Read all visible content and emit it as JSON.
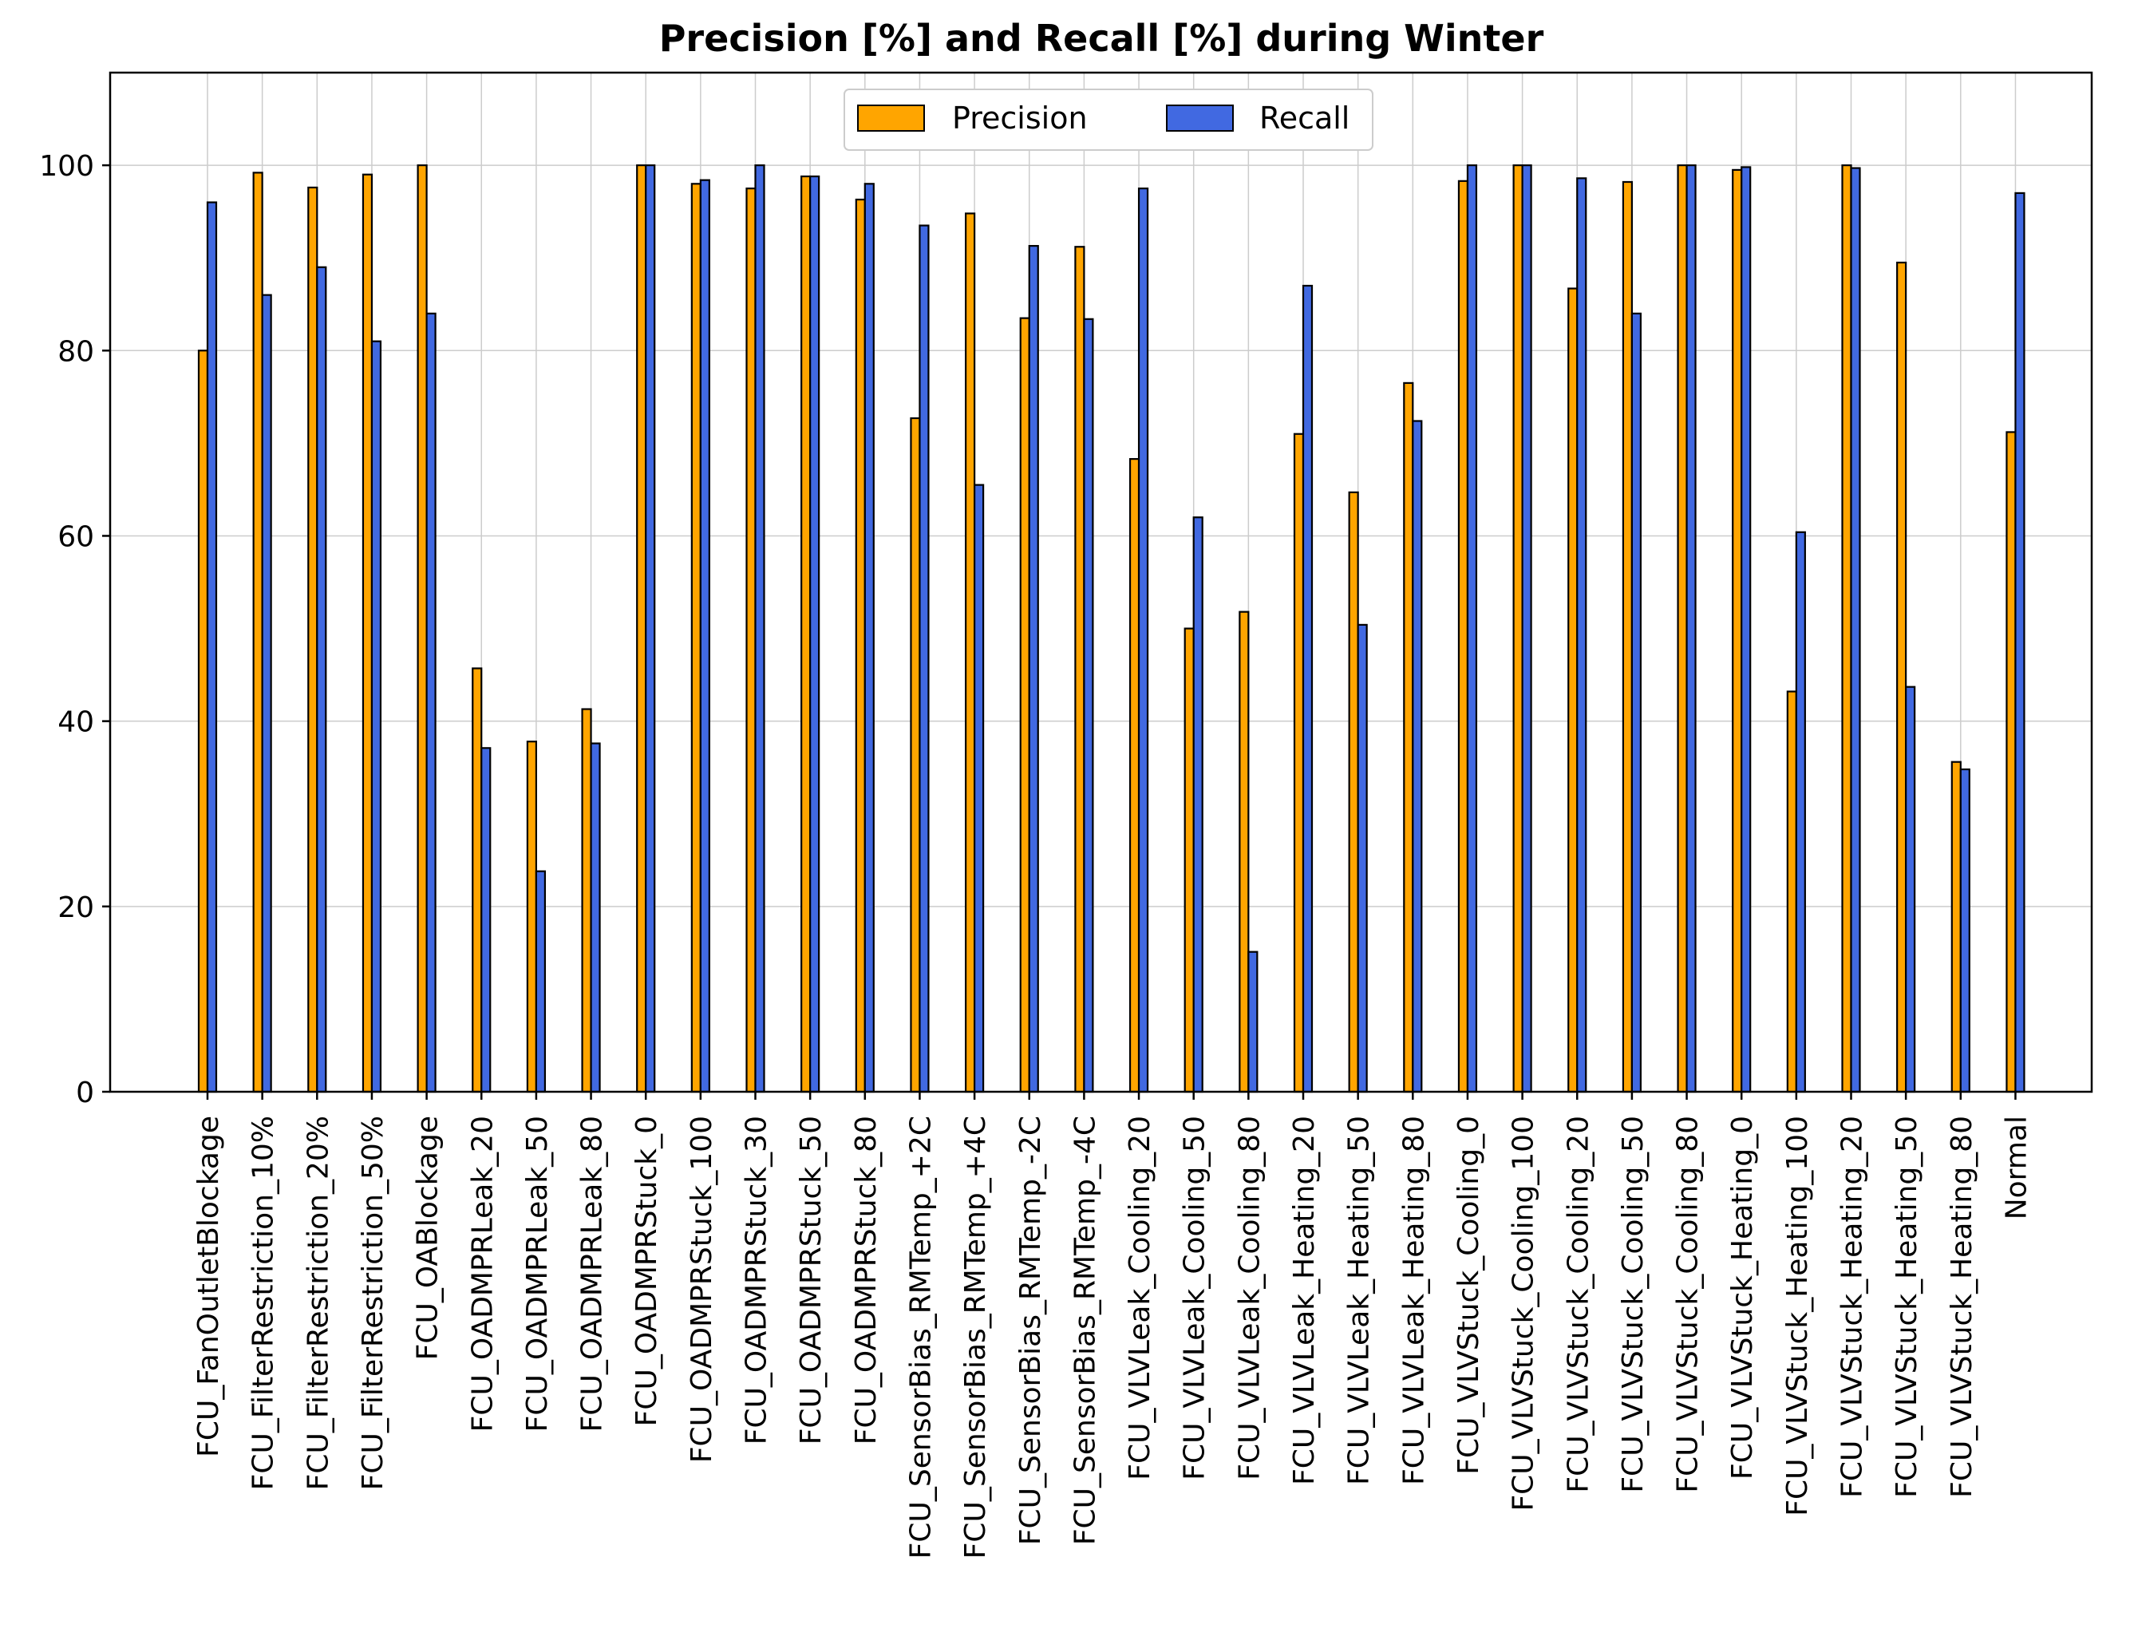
{
  "chart_data": {
    "type": "bar",
    "title": "Precision [%] and Recall [%] during Winter",
    "xlabel": "",
    "ylabel": "",
    "ylim": [
      0,
      110
    ],
    "yticks": [
      0,
      20,
      40,
      60,
      80,
      100
    ],
    "grid": true,
    "legend_position": "top-center",
    "categories": [
      "FCU_FanOutletBlockage",
      "FCU_FilterRestriction_10%",
      "FCU_FilterRestriction_20%",
      "FCU_FilterRestriction_50%",
      "FCU_OABlockage",
      "FCU_OADMPRLeak_20",
      "FCU_OADMPRLeak_50",
      "FCU_OADMPRLeak_80",
      "FCU_OADMPRStuck_0",
      "FCU_OADMPRStuck_100",
      "FCU_OADMPRStuck_30",
      "FCU_OADMPRStuck_50",
      "FCU_OADMPRStuck_80",
      "FCU_SensorBias_RMTemp_+2C",
      "FCU_SensorBias_RMTemp_+4C",
      "FCU_SensorBias_RMTemp_-2C",
      "FCU_SensorBias_RMTemp_-4C",
      "FCU_VLVLeak_Cooling_20",
      "FCU_VLVLeak_Cooling_50",
      "FCU_VLVLeak_Cooling_80",
      "FCU_VLVLeak_Heating_20",
      "FCU_VLVLeak_Heating_50",
      "FCU_VLVLeak_Heating_80",
      "FCU_VLVStuck_Cooling_0",
      "FCU_VLVStuck_Cooling_100",
      "FCU_VLVStuck_Cooling_20",
      "FCU_VLVStuck_Cooling_50",
      "FCU_VLVStuck_Cooling_80",
      "FCU_VLVStuck_Heating_0",
      "FCU_VLVStuck_Heating_100",
      "FCU_VLVStuck_Heating_20",
      "FCU_VLVStuck_Heating_50",
      "FCU_VLVStuck_Heating_80",
      "Normal"
    ],
    "series": [
      {
        "name": "Precision",
        "color": "#FFA500",
        "values": [
          80.0,
          99.2,
          97.6,
          99.0,
          100.0,
          45.7,
          37.8,
          41.3,
          100.0,
          98.0,
          97.5,
          98.8,
          96.3,
          72.7,
          94.8,
          83.5,
          91.2,
          68.3,
          50.0,
          51.8,
          71.0,
          64.7,
          76.5,
          98.3,
          100.0,
          86.7,
          98.2,
          100.0,
          99.5,
          43.2,
          100.0,
          89.5,
          35.6,
          71.2
        ]
      },
      {
        "name": "Recall",
        "color": "#4169E1",
        "values": [
          96.0,
          86.0,
          89.0,
          81.0,
          84.0,
          37.1,
          23.8,
          37.6,
          100.0,
          98.4,
          100.0,
          98.8,
          98.0,
          93.5,
          65.5,
          91.3,
          83.4,
          97.5,
          62.0,
          15.1,
          87.0,
          50.4,
          72.4,
          100.0,
          100.0,
          98.6,
          84.0,
          100.0,
          99.8,
          60.4,
          99.7,
          43.7,
          34.8,
          97.0
        ]
      }
    ]
  }
}
